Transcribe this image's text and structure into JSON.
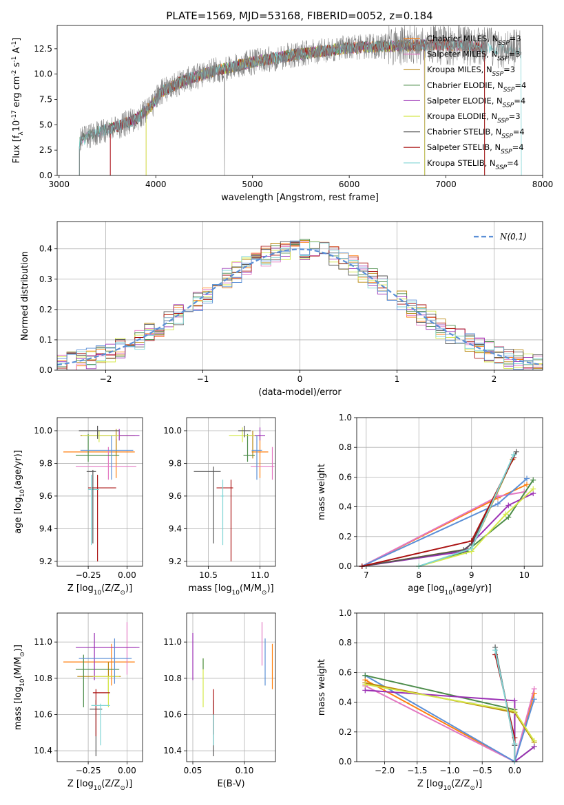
{
  "figure_title": "PLATE=1569, MJD=53168, FIBERID=0052, z=0.184",
  "legend_spectrum": [
    "Chabrier MILES, N$_{SSP}$=3",
    "Salpeter MILES, N$_{SSP}$=3",
    "Kroupa MILES, N$_{SSP}$=3",
    "Chabrier ELODIE, N$_{SSP}$=4",
    "Salpeter ELODIE, N$_{SSP}$=4",
    "Kroupa ELODIE, N$_{SSP}$=3",
    "Chabrier STELIB, N$_{SSP}$=4",
    "Salpeter STELIB, N$_{SSP}$=4",
    "Kroupa STELIB, N$_{SSP}$=4"
  ],
  "colors": [
    "#ff7f0e",
    "#e377c2",
    "#b8860b",
    "#4c8c4a",
    "#9b30b5",
    "#d4e84a",
    "#555555",
    "#aa1111",
    "#7fd4d4"
  ],
  "extra_colors": {
    "blue": "#5b8fd6",
    "spectrum_grey": "#808080",
    "normal": "#5b8fd6"
  },
  "chart_data": [
    {
      "id": "spectrum",
      "type": "line",
      "xlabel": "wavelength [Angstrom, rest frame]",
      "ylabel": "Flux [f$_\\lambda$10$^{-17}$ erg cm$^{-2}$ s$^{-1}$ A$^{-1}$]",
      "xlim": [
        2980,
        8000
      ],
      "ylim": [
        0,
        14.8
      ],
      "xticks": [
        "3000",
        "4000",
        "5000",
        "6000",
        "7000",
        "8000"
      ],
      "yticks": [
        "0.0",
        "2.5",
        "5.0",
        "7.5",
        "10.0",
        "12.5"
      ],
      "data_start": 3210,
      "data_end": 7780,
      "continuum_knots": [
        [
          3210,
          3.4
        ],
        [
          3400,
          4.3
        ],
        [
          3600,
          4.8
        ],
        [
          3800,
          5.6
        ],
        [
          3950,
          6.8
        ],
        [
          4050,
          8.2
        ],
        [
          4300,
          9.4
        ],
        [
          4600,
          10.3
        ],
        [
          5000,
          11.2
        ],
        [
          5500,
          12.0
        ],
        [
          6000,
          12.6
        ],
        [
          6500,
          12.8
        ],
        [
          7000,
          12.9
        ],
        [
          7500,
          12.6
        ],
        [
          7780,
          12.4
        ]
      ],
      "model_starts": [
        3530,
        3210,
        3900,
        3210,
        3530,
        3900,
        3210,
        3530,
        3210
      ],
      "model_ends": [
        7400,
        7400,
        6780,
        6780,
        6780,
        6780,
        7400,
        7400,
        7780
      ]
    },
    {
      "id": "residuals",
      "type": "histogram",
      "xlabel": "(data-model)/error",
      "ylabel": "Normed distribution",
      "xlim": [
        -2.5,
        2.5
      ],
      "ylim": [
        0,
        0.49
      ],
      "xticks": [
        "−2",
        "−1",
        "0",
        "1",
        "2"
      ],
      "yticks": [
        "0.0",
        "0.1",
        "0.2",
        "0.3",
        "0.4"
      ],
      "bin_width": 0.1,
      "normal_label": "$\\mathcal{N}(0,1)$"
    },
    {
      "id": "age_vs_Z",
      "type": "scatter",
      "xlabel": "Z [log$_{10}$(Z/Z$_\\odot$)]",
      "ylabel": "age  [log$_{10}$(age/yr)]",
      "xlim": [
        -0.45,
        0.1
      ],
      "ylim": [
        9.17,
        10.08
      ],
      "xticks": [
        [
          "−0.25",
          -0.25
        ],
        [
          "0.00",
          0.0
        ]
      ],
      "yticks": [
        [
          "9.2",
          9.2
        ],
        [
          "9.4",
          9.4
        ],
        [
          "9.6",
          9.6
        ],
        [
          "9.8",
          9.8
        ],
        [
          "10.0",
          10.0
        ]
      ],
      "points": [
        {
          "x": -0.07,
          "y": 9.87,
          "xl": -0.41,
          "xh": 0.05,
          "yl": 9.71,
          "yh": 9.95,
          "c": 0
        },
        {
          "x": -0.12,
          "y": 9.78,
          "xl": -0.33,
          "xh": 0.06,
          "yl": 9.7,
          "yh": 9.9,
          "c": 1
        },
        {
          "x": -0.07,
          "y": 9.97,
          "xl": -0.3,
          "xh": 0.05,
          "yl": 9.85,
          "yh": 10.01,
          "c": 2
        },
        {
          "x": -0.25,
          "y": 9.85,
          "xl": -0.33,
          "xh": -0.05,
          "yl": 9.81,
          "yh": 9.98,
          "c": 3
        },
        {
          "x": -0.05,
          "y": 9.97,
          "xl": -0.27,
          "xh": 0.08,
          "yl": 9.94,
          "yh": 10.01,
          "c": 4
        },
        {
          "x": -0.18,
          "y": 9.97,
          "xl": -0.29,
          "xh": -0.05,
          "yl": 9.93,
          "yh": 10.0,
          "c": 5
        },
        {
          "x": -0.19,
          "y": 10.0,
          "xl": -0.31,
          "xh": -0.05,
          "yl": 9.95,
          "yh": 10.03,
          "c": 6
        },
        {
          "x": -0.19,
          "y": 9.65,
          "xl": -0.25,
          "xh": -0.07,
          "yl": 9.2,
          "yh": 9.73,
          "c": 7
        },
        {
          "x": -0.23,
          "y": 9.64,
          "xl": -0.25,
          "xh": -0.18,
          "yl": 9.3,
          "yh": 9.73,
          "c": 8
        },
        {
          "x": -0.1,
          "y": 9.88,
          "xl": -0.3,
          "xh": 0.04,
          "yl": 9.7,
          "yh": 9.97,
          "c": "blue"
        },
        {
          "x": -0.22,
          "y": 9.75,
          "xl": -0.26,
          "xh": -0.2,
          "yl": 9.31,
          "yh": 9.76,
          "c": 6
        }
      ]
    },
    {
      "id": "age_vs_mass",
      "type": "scatter",
      "xlabel": "mass [log$_{10}$(M/M$_\\odot$)]",
      "ylabel": "",
      "xlim": [
        10.29,
        11.15
      ],
      "ylim": [
        9.17,
        10.08
      ],
      "xticks": [
        [
          "10.5",
          10.5
        ],
        [
          "11.0",
          11.0
        ]
      ],
      "yticks": [
        [
          "9.2",
          9.2
        ],
        [
          "9.4",
          9.4
        ],
        [
          "9.6",
          9.6
        ],
        [
          "9.8",
          9.8
        ],
        [
          "10.0",
          10.0
        ]
      ],
      "points": [
        {
          "x": 11.0,
          "y": 9.87,
          "xl": 10.92,
          "xh": 11.08,
          "yl": 9.71,
          "yh": 9.97,
          "c": 0
        },
        {
          "x": 11.12,
          "y": 9.78,
          "xl": 10.91,
          "xh": 11.14,
          "yl": 9.7,
          "yh": 9.9,
          "c": 1
        },
        {
          "x": 10.93,
          "y": 9.97,
          "xl": 10.85,
          "xh": 11.0,
          "yl": 9.83,
          "yh": 10.0,
          "c": 2
        },
        {
          "x": 10.88,
          "y": 9.85,
          "xl": 10.84,
          "xh": 10.95,
          "yl": 9.81,
          "yh": 9.98,
          "c": 3
        },
        {
          "x": 11.0,
          "y": 9.97,
          "xl": 10.89,
          "xh": 11.05,
          "yl": 9.94,
          "yh": 10.02,
          "c": 4
        },
        {
          "x": 10.83,
          "y": 9.97,
          "xl": 10.7,
          "xh": 10.95,
          "yl": 9.93,
          "yh": 10.02,
          "c": 5
        },
        {
          "x": 10.85,
          "y": 10.0,
          "xl": 10.79,
          "xh": 10.91,
          "yl": 9.96,
          "yh": 10.03,
          "c": 6
        },
        {
          "x": 10.72,
          "y": 9.65,
          "xl": 10.58,
          "xh": 10.74,
          "yl": 9.2,
          "yh": 9.7,
          "c": 7
        },
        {
          "x": 10.64,
          "y": 9.6,
          "xl": 10.62,
          "xh": 10.65,
          "yl": 9.3,
          "yh": 9.7,
          "c": 8
        },
        {
          "x": 10.97,
          "y": 9.88,
          "xl": 10.92,
          "xh": 11.02,
          "yl": 9.7,
          "yh": 9.97,
          "c": "blue"
        },
        {
          "x": 10.55,
          "y": 9.75,
          "xl": 10.36,
          "xh": 10.62,
          "yl": 9.31,
          "yh": 9.78,
          "c": 6
        }
      ]
    },
    {
      "id": "mass_weight_vs_age",
      "type": "line",
      "xlabel": "age  [log$_{10}$(age/yr)]",
      "ylabel": "mass weight",
      "xlim": [
        6.82,
        10.35
      ],
      "ylim": [
        0,
        1
      ],
      "xticks": [
        [
          "7",
          7
        ],
        [
          "8",
          8
        ],
        [
          "9",
          9
        ],
        [
          "10",
          10
        ]
      ],
      "yticks": [
        [
          "0.0",
          0.0
        ],
        [
          "0.2",
          0.2
        ],
        [
          "0.4",
          0.4
        ],
        [
          "0.6",
          0.6
        ],
        [
          "0.8",
          0.8
        ],
        [
          "1.0",
          1.0
        ]
      ],
      "series": [
        {
          "c": 0,
          "pts": [
            [
              6.92,
              0.0
            ],
            [
              9.5,
              0.46
            ],
            [
              10.05,
              0.55
            ]
          ]
        },
        {
          "c": 1,
          "pts": [
            [
              6.92,
              0.0
            ],
            [
              9.5,
              0.47
            ],
            [
              10.0,
              0.5
            ]
          ]
        },
        {
          "c": "blue",
          "pts": [
            [
              6.92,
              0.0
            ],
            [
              9.5,
              0.42
            ],
            [
              10.05,
              0.59
            ]
          ]
        },
        {
          "c": 2,
          "pts": [
            [
              6.92,
              0.0
            ],
            [
              9.0,
              0.12
            ],
            [
              9.78,
              0.72
            ]
          ]
        },
        {
          "c": 3,
          "pts": [
            [
              8.0,
              0.0
            ],
            [
              8.9,
              0.1
            ],
            [
              9.7,
              0.33
            ],
            [
              10.17,
              0.58
            ]
          ]
        },
        {
          "c": 4,
          "pts": [
            [
              6.92,
              0.0
            ],
            [
              8.85,
              0.1
            ],
            [
              9.7,
              0.41
            ],
            [
              10.17,
              0.49
            ]
          ]
        },
        {
          "c": 5,
          "pts": [
            [
              8.0,
              0.0
            ],
            [
              9.0,
              0.1
            ],
            [
              9.65,
              0.35
            ],
            [
              10.17,
              0.52
            ]
          ]
        },
        {
          "c": 6,
          "pts": [
            [
              6.92,
              0.0
            ],
            [
              8.85,
              0.11
            ],
            [
              9.0,
              0.15
            ],
            [
              9.85,
              0.77
            ]
          ]
        },
        {
          "c": 7,
          "pts": [
            [
              6.92,
              0.0
            ],
            [
              9.0,
              0.17
            ],
            [
              9.8,
              0.73
            ]
          ]
        },
        {
          "c": 8,
          "pts": [
            [
              8.0,
              0.0
            ],
            [
              9.0,
              0.12
            ],
            [
              9.8,
              0.75
            ]
          ]
        }
      ]
    },
    {
      "id": "mass_vs_Z",
      "type": "scatter",
      "xlabel": "Z [log$_{10}$(Z/Z$_\\odot$)]",
      "ylabel": "mass [log$_{10}$(M/M$_\\odot$)]",
      "xlim": [
        -0.45,
        0.1
      ],
      "ylim": [
        10.34,
        11.16
      ],
      "xticks": [
        [
          "−0.25",
          -0.25
        ],
        [
          "0.00",
          0.0
        ]
      ],
      "yticks": [
        [
          "10.4",
          10.4
        ],
        [
          "10.6",
          10.6
        ],
        [
          "10.8",
          10.8
        ],
        [
          "11.0",
          11.0
        ]
      ],
      "points": [
        {
          "x": -0.1,
          "y": 10.89,
          "xl": -0.41,
          "xh": 0.05,
          "yl": 10.76,
          "yh": 10.99,
          "c": 0
        },
        {
          "x": 0.0,
          "y": 10.97,
          "xl": -0.23,
          "xh": 0.06,
          "yl": 10.82,
          "yh": 11.11,
          "c": 1
        },
        {
          "x": -0.12,
          "y": 10.81,
          "xl": -0.32,
          "xh": -0.04,
          "yl": 10.73,
          "yh": 10.89,
          "c": 2
        },
        {
          "x": -0.28,
          "y": 10.85,
          "xl": -0.33,
          "xh": -0.05,
          "yl": 10.64,
          "yh": 10.93,
          "c": 3
        },
        {
          "x": -0.21,
          "y": 10.97,
          "xl": -0.33,
          "xh": 0.08,
          "yl": 10.79,
          "yh": 11.05,
          "c": 4
        },
        {
          "x": -0.12,
          "y": 10.81,
          "xl": -0.22,
          "xh": -0.05,
          "yl": 10.64,
          "yh": 10.81,
          "c": 5
        },
        {
          "x": -0.2,
          "y": 10.63,
          "xl": -0.24,
          "xh": -0.16,
          "yl": 10.37,
          "yh": 10.68,
          "c": 6
        },
        {
          "x": -0.2,
          "y": 10.72,
          "xl": -0.22,
          "xh": -0.11,
          "yl": 10.48,
          "yh": 10.74,
          "c": 7
        },
        {
          "x": -0.17,
          "y": 10.65,
          "xl": -0.23,
          "xh": -0.11,
          "yl": 10.43,
          "yh": 10.66,
          "c": 8
        },
        {
          "x": -0.08,
          "y": 10.91,
          "xl": -0.31,
          "xh": 0.03,
          "yl": 10.77,
          "yh": 11.02,
          "c": "blue"
        }
      ]
    },
    {
      "id": "mass_vs_EBV",
      "type": "errorbar",
      "xlabel": "E(B-V)",
      "ylabel": "",
      "xlim": [
        0.044,
        0.13
      ],
      "ylim": [
        10.34,
        11.16
      ],
      "xticks": [
        [
          "0.05",
          0.05
        ],
        [
          "0.10",
          0.1
        ]
      ],
      "yticks": [
        [
          "10.4",
          10.4
        ],
        [
          "10.6",
          10.6
        ],
        [
          "10.8",
          10.8
        ],
        [
          "11.0",
          11.0
        ]
      ],
      "points": [
        {
          "x": 0.05,
          "yl": 10.79,
          "yh": 11.05,
          "c": 4
        },
        {
          "x": 0.06,
          "yl": 10.64,
          "yh": 10.91,
          "c": 5
        },
        {
          "x": 0.06,
          "yl": 10.85,
          "yh": 10.91,
          "c": 3
        },
        {
          "x": 0.07,
          "yl": 10.37,
          "yh": 10.68,
          "c": 6
        },
        {
          "x": 0.07,
          "yl": 10.49,
          "yh": 10.74,
          "c": 7
        },
        {
          "x": 0.07,
          "yl": 10.43,
          "yh": 10.6,
          "c": 8
        },
        {
          "x": 0.117,
          "yl": 10.87,
          "yh": 11.11,
          "c": 1
        },
        {
          "x": 0.12,
          "yl": 10.76,
          "yh": 11.02,
          "c": "blue"
        },
        {
          "x": 0.127,
          "yl": 10.74,
          "yh": 10.99,
          "c": 0
        }
      ]
    },
    {
      "id": "mass_weight_vs_Z",
      "type": "line",
      "xlabel": "Z [log$_{10}$(Z/Z$_\\odot$)]",
      "ylabel": "mass weight",
      "xlim": [
        -2.43,
        0.43
      ],
      "ylim": [
        0,
        1
      ],
      "xticks": [
        [
          "−2.0",
          -2.0
        ],
        [
          "−1.5",
          -1.5
        ],
        [
          "−1.0",
          -1.0
        ],
        [
          "−0.5",
          -0.5
        ],
        [
          "0.0",
          0.0
        ]
      ],
      "yticks": [
        [
          "0.0",
          0.0
        ],
        [
          "0.2",
          0.2
        ],
        [
          "0.4",
          0.4
        ],
        [
          "0.6",
          0.6
        ],
        [
          "0.8",
          0.8
        ],
        [
          "1.0",
          1.0
        ]
      ],
      "series": [
        {
          "c": 0,
          "pts": [
            [
              -2.3,
              0.55
            ],
            [
              0.0,
              0.0
            ],
            [
              0.3,
              0.46
            ]
          ]
        },
        {
          "c": 1,
          "pts": [
            [
              -2.3,
              0.51
            ],
            [
              0.0,
              0.0
            ],
            [
              0.3,
              0.49
            ]
          ]
        },
        {
          "c": "blue",
          "pts": [
            [
              -2.3,
              0.58
            ],
            [
              0.0,
              0.0
            ],
            [
              0.3,
              0.42
            ]
          ]
        },
        {
          "c": 2,
          "pts": [
            [
              -2.3,
              0.53
            ],
            [
              0.0,
              0.33
            ],
            [
              0.3,
              0.13
            ]
          ]
        },
        {
          "c": 3,
          "pts": [
            [
              -2.3,
              0.58
            ],
            [
              0.0,
              0.35
            ],
            [
              0.0,
              0.0
            ],
            [
              0.3,
              0.1
            ]
          ]
        },
        {
          "c": 4,
          "pts": [
            [
              -2.3,
              0.48
            ],
            [
              0.0,
              0.41
            ],
            [
              0.0,
              0.0
            ],
            [
              0.3,
              0.1
            ]
          ]
        },
        {
          "c": 5,
          "pts": [
            [
              -2.3,
              0.52
            ],
            [
              0.0,
              0.34
            ],
            [
              0.3,
              0.14
            ]
          ]
        },
        {
          "c": 6,
          "pts": [
            [
              -0.3,
              0.77
            ],
            [
              0.0,
              0.11
            ],
            [
              0.0,
              0.0
            ]
          ]
        },
        {
          "c": 7,
          "pts": [
            [
              -0.3,
              0.72
            ],
            [
              0.0,
              0.16
            ],
            [
              0.0,
              0.0
            ]
          ]
        },
        {
          "c": 8,
          "pts": [
            [
              -0.3,
              0.75
            ],
            [
              0.0,
              0.12
            ],
            [
              0.0,
              0.0
            ]
          ]
        }
      ]
    }
  ]
}
